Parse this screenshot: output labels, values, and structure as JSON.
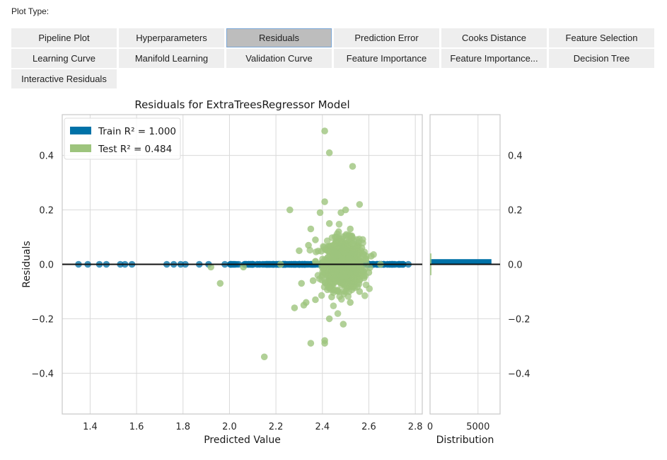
{
  "header": {
    "plot_type_label": "Plot Type:"
  },
  "buttons": [
    {
      "label": "Pipeline Plot",
      "selected": false
    },
    {
      "label": "Hyperparameters",
      "selected": false
    },
    {
      "label": "Residuals",
      "selected": true
    },
    {
      "label": "Prediction Error",
      "selected": false
    },
    {
      "label": "Cooks Distance",
      "selected": false
    },
    {
      "label": "Feature Selection",
      "selected": false
    },
    {
      "label": "Learning Curve",
      "selected": false
    },
    {
      "label": "Manifold Learning",
      "selected": false
    },
    {
      "label": "Validation Curve",
      "selected": false
    },
    {
      "label": "Feature Importance",
      "selected": false
    },
    {
      "label": "Feature Importance...",
      "selected": false
    },
    {
      "label": "Decision Tree",
      "selected": false
    },
    {
      "label": "Interactive Residuals",
      "selected": false
    }
  ],
  "colors": {
    "train": "#0072a8",
    "test": "#9dc47d",
    "zero_line": "#111111",
    "grid": "#d9d9d9",
    "axis": "#c8c8c8",
    "selected_button": "#bdbdbd",
    "button": "#eeeeee"
  },
  "chart_data": {
    "type": "scatter",
    "title": "Residuals for ExtraTreesRegressor Model",
    "xlabel": "Predicted Value",
    "ylabel": "Residuals",
    "xlim": [
      1.28,
      2.83
    ],
    "ylim": [
      -0.55,
      0.55
    ],
    "xticks": [
      "1.4",
      "1.6",
      "1.8",
      "2.0",
      "2.2",
      "2.4",
      "2.6",
      "2.8"
    ],
    "yticks": [
      "−0.4",
      "−0.2",
      "0.0",
      "0.2",
      "0.4"
    ],
    "ytick_values": [
      -0.4,
      -0.2,
      0.0,
      0.2,
      0.4
    ],
    "xtick_values": [
      1.4,
      1.6,
      1.8,
      2.0,
      2.2,
      2.4,
      2.6,
      2.8
    ],
    "grid": true,
    "legend": {
      "placement": "top-left",
      "entries": [
        {
          "series": "train",
          "label": "Train R² = 1.000"
        },
        {
          "series": "test",
          "label": "Test R² = 0.484"
        }
      ]
    },
    "series": [
      {
        "name": "Train R² = 1.000",
        "key": "train",
        "points": [
          [
            1.35,
            0.0
          ],
          [
            1.39,
            0.0
          ],
          [
            1.44,
            0.0
          ],
          [
            1.47,
            0.0
          ],
          [
            1.53,
            0.0
          ],
          [
            1.55,
            0.0
          ],
          [
            1.58,
            0.0
          ],
          [
            1.73,
            0.0
          ],
          [
            1.76,
            0.0
          ],
          [
            1.79,
            0.0
          ],
          [
            1.81,
            0.0
          ],
          [
            1.87,
            0.0
          ],
          [
            1.91,
            0.0
          ],
          [
            1.98,
            0.0
          ],
          [
            2.04,
            0.0
          ],
          [
            2.08,
            0.0
          ],
          [
            2.12,
            0.0
          ],
          [
            2.16,
            0.0
          ],
          [
            2.2,
            0.0
          ],
          [
            2.24,
            0.0
          ],
          [
            2.28,
            0.0
          ],
          [
            2.32,
            0.0
          ],
          [
            2.36,
            0.0
          ],
          [
            2.4,
            0.0
          ],
          [
            2.44,
            0.0
          ],
          [
            2.48,
            0.0
          ],
          [
            2.52,
            0.0
          ],
          [
            2.56,
            0.0
          ],
          [
            2.6,
            0.0
          ],
          [
            2.64,
            0.0
          ],
          [
            2.68,
            0.0
          ],
          [
            2.71,
            0.0
          ],
          [
            2.74,
            0.0
          ],
          [
            2.77,
            0.0
          ]
        ]
      },
      {
        "name": "Test R² = 0.484",
        "key": "test",
        "points": [
          [
            2.41,
            0.49
          ],
          [
            2.43,
            0.41
          ],
          [
            2.53,
            0.36
          ],
          [
            2.41,
            0.23
          ],
          [
            2.26,
            0.2
          ],
          [
            2.5,
            0.2
          ],
          [
            2.56,
            0.22
          ],
          [
            2.39,
            0.19
          ],
          [
            2.48,
            0.19
          ],
          [
            2.35,
            0.13
          ],
          [
            2.43,
            0.15
          ],
          [
            2.52,
            0.13
          ],
          [
            2.3,
            0.05
          ],
          [
            2.34,
            0.07
          ],
          [
            2.37,
            0.09
          ],
          [
            2.57,
            0.06
          ],
          [
            2.61,
            0.03
          ],
          [
            2.22,
            0.0
          ],
          [
            1.96,
            -0.07
          ],
          [
            2.06,
            -0.01
          ],
          [
            1.92,
            -0.01
          ],
          [
            2.15,
            -0.34
          ],
          [
            2.35,
            -0.29
          ],
          [
            2.41,
            -0.28
          ],
          [
            2.41,
            -0.29
          ],
          [
            2.49,
            -0.22
          ],
          [
            2.43,
            -0.2
          ],
          [
            2.28,
            -0.16
          ],
          [
            2.32,
            -0.15
          ],
          [
            2.33,
            -0.14
          ],
          [
            2.37,
            -0.13
          ],
          [
            2.52,
            -0.14
          ],
          [
            2.56,
            -0.1
          ],
          [
            2.31,
            -0.07
          ],
          [
            2.36,
            -0.06
          ],
          [
            2.58,
            -0.05
          ],
          [
            2.6,
            -0.03
          ],
          [
            2.65,
            0.0
          ],
          [
            2.44,
            -0.12
          ],
          [
            2.46,
            0.1
          ],
          [
            2.5,
            -0.1
          ],
          [
            2.47,
            0.12
          ],
          [
            2.45,
            -0.05
          ],
          [
            2.49,
            0.06
          ]
        ],
        "cluster": {
          "x_center": 2.49,
          "x_spread": 0.075,
          "y_spread": 0.045,
          "count": 900,
          "shape": "gaussian"
        }
      }
    ],
    "distribution_panel": {
      "xlabel": "Distribution",
      "xticks": [
        "0",
        "5000"
      ],
      "xtick_values": [
        0,
        5000
      ],
      "xlim": [
        0,
        7300
      ],
      "bars": [
        {
          "series": "train",
          "y0": 0.0,
          "y1": 0.019,
          "count": 6400
        },
        {
          "series": "test",
          "y0": -0.04,
          "y1": 0.04,
          "count": 150
        }
      ],
      "yticks": [
        "0.4",
        "0.2",
        "0.0",
        "−0.2",
        "−0.4"
      ],
      "ytick_values": [
        0.4,
        0.2,
        0.0,
        -0.2,
        -0.4
      ]
    }
  }
}
